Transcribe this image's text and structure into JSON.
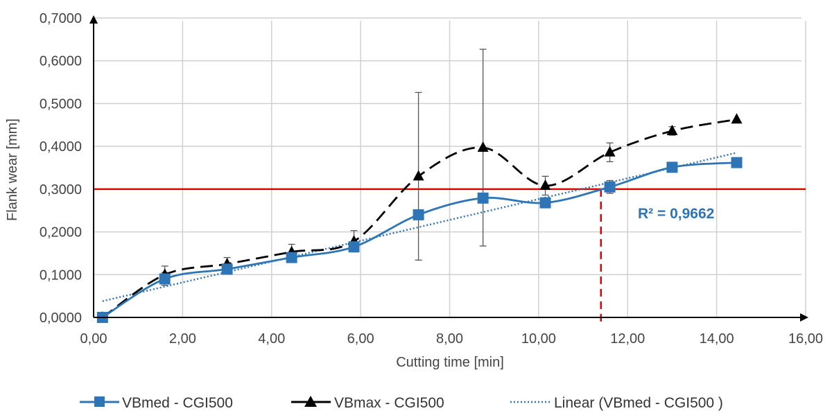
{
  "chart_data": {
    "type": "line",
    "xlabel": "Cutting time [min]",
    "ylabel": "Flank wear [mm]",
    "xlim": [
      0,
      16
    ],
    "ylim": [
      0,
      0.7
    ],
    "x_ticks": [
      "0,00",
      "2,00",
      "4,00",
      "6,00",
      "8,00",
      "10,00",
      "12,00",
      "14,00",
      "16,00"
    ],
    "y_ticks": [
      "0,0000",
      "0,1000",
      "0,2000",
      "0,3000",
      "0,4000",
      "0,5000",
      "0,6000",
      "0,7000"
    ],
    "grid": true,
    "legend_position": "bottom",
    "series": [
      {
        "name": "VBmed - CGI500",
        "color": "#2E75B6",
        "marker": "square",
        "line": "solid-smooth",
        "x": [
          0.2,
          1.6,
          3.0,
          4.45,
          5.85,
          7.3,
          8.75,
          10.15,
          11.6,
          13.0,
          14.45
        ],
        "y": [
          0.0,
          0.09,
          0.113,
          0.14,
          0.165,
          0.24,
          0.279,
          0.268,
          0.305,
          0.351,
          0.362
        ],
        "err": [
          0,
          0.015,
          0.01,
          0.01,
          0.01,
          0,
          0,
          0,
          0.015,
          0,
          0
        ]
      },
      {
        "name": "VBmax - CGI500",
        "color": "#000000",
        "marker": "triangle",
        "line": "dashed-smooth",
        "x": [
          0.2,
          1.6,
          3.0,
          4.45,
          5.85,
          7.3,
          8.75,
          10.15,
          11.6,
          13.0,
          14.45
        ],
        "y": [
          0.0,
          0.1,
          0.125,
          0.153,
          0.178,
          0.33,
          0.397,
          0.308,
          0.386,
          0.436,
          0.463
        ],
        "err": [
          0,
          0.02,
          0.015,
          0.018,
          0.025,
          0.196,
          0.23,
          0.022,
          0.022,
          0.01,
          0
        ]
      },
      {
        "name": "Linear (VBmed - CGI500 )",
        "color": "#2E75B6",
        "line": "dotted",
        "x": [
          0.2,
          14.45
        ],
        "y": [
          0.038,
          0.385
        ]
      }
    ],
    "annotations": {
      "threshold_y": 0.3,
      "threshold_color": "#E00000",
      "intersection_x": 11.4,
      "r_squared_label": "R² = 0,9662",
      "r_squared_color": "#2E75B6"
    }
  }
}
